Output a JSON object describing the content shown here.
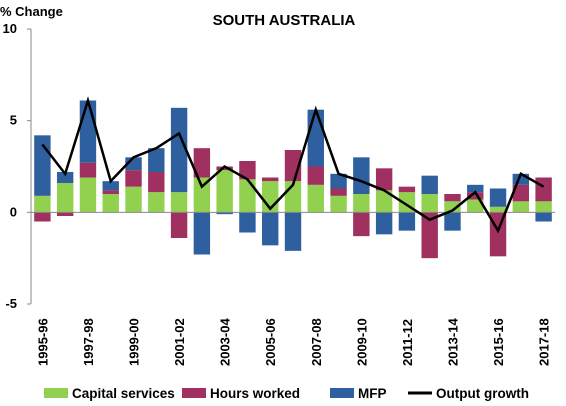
{
  "chart_data": {
    "type": "bar",
    "stacked": true,
    "title": "SOUTH AUSTRALIA",
    "ylabel": "% Change",
    "xlabel": "",
    "ylim": [
      -5,
      10
    ],
    "yticks": [
      10,
      5,
      0,
      -5
    ],
    "grid": false,
    "legend_position": "bottom",
    "categories": [
      "1995-96",
      "1996-97",
      "1997-98",
      "1998-99",
      "1999-00",
      "2000-01",
      "2001-02",
      "2002-03",
      "2003-04",
      "2004-05",
      "2005-06",
      "2006-07",
      "2007-08",
      "2008-09",
      "2009-10",
      "2010-11",
      "2011-12",
      "2012-13",
      "2013-14",
      "2014-15",
      "2015-16",
      "2016-17",
      "2017-18"
    ],
    "x_tick_labels": [
      "1995-96",
      "1997-98",
      "1999-00",
      "2001-02",
      "2003-04",
      "2005-06",
      "2007-08",
      "2009-10",
      "2011-12",
      "2013-14",
      "2015-16",
      "2017-18"
    ],
    "series": [
      {
        "name": "Capital services",
        "kind": "bar",
        "color": "#92d050",
        "values": [
          0.9,
          1.6,
          1.9,
          1.0,
          1.4,
          1.1,
          1.1,
          1.9,
          2.3,
          1.8,
          1.7,
          1.7,
          1.5,
          0.9,
          1.0,
          1.2,
          1.1,
          1.0,
          0.6,
          0.7,
          0.3,
          0.6,
          0.6
        ]
      },
      {
        "name": "Hours worked",
        "kind": "bar",
        "color": "#a03060",
        "values": [
          -0.5,
          -0.2,
          0.8,
          0.2,
          0.9,
          1.1,
          -1.4,
          1.6,
          0.2,
          1.0,
          0.2,
          1.7,
          1.0,
          0.4,
          -1.3,
          1.2,
          0.3,
          -2.5,
          0.4,
          0.4,
          -2.4,
          0.9,
          1.3
        ]
      },
      {
        "name": "MFP",
        "kind": "bar",
        "color": "#2e5f9e",
        "values": [
          3.3,
          0.6,
          3.4,
          0.5,
          0.7,
          1.3,
          4.6,
          -2.3,
          -0.1,
          -1.1,
          -1.8,
          -2.1,
          3.1,
          0.8,
          2.0,
          -1.2,
          -1.0,
          1.0,
          -1.0,
          0.4,
          1.0,
          0.6,
          -0.5
        ]
      },
      {
        "name": "Output growth",
        "kind": "line",
        "color": "#000000",
        "values": [
          3.7,
          2.1,
          6.1,
          1.7,
          3.0,
          3.5,
          4.3,
          1.4,
          2.5,
          1.8,
          0.2,
          1.5,
          5.6,
          2.1,
          1.7,
          1.2,
          0.4,
          -0.4,
          0.1,
          1.1,
          -1.0,
          2.1,
          1.4
        ]
      }
    ]
  }
}
